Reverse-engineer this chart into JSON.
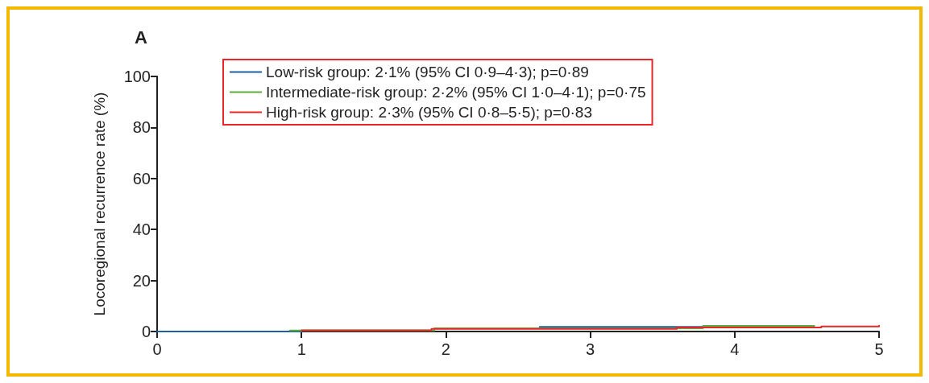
{
  "chart_data": {
    "type": "step",
    "title": "A",
    "ylabel": "Locoregional recurrence rate (%)",
    "xlim": [
      0,
      5
    ],
    "xticks": [
      0,
      1,
      2,
      3,
      4,
      5
    ],
    "ylim": [
      0,
      100
    ],
    "yticks": [
      0,
      20,
      40,
      60,
      80,
      100
    ],
    "grid": false,
    "legend": "top left",
    "marker": "none",
    "line_style": "solid",
    "series": [
      {
        "name": "Low-risk group: 2·1% (95% CI 0·9–4·3); p=0·89",
        "color": "#1f5fa8",
        "x": [
          0,
          1,
          1.9,
          2.65,
          4.55
        ],
        "values": [
          0,
          null,
          null,
          1.8,
          2.1
        ]
      },
      {
        "name": "Intermediate-risk group: 2·2% (95% CI 1·0–4·1); p=0·75",
        "color": "#5aae3c",
        "x": [
          0.92,
          1.92,
          3.78,
          4.55
        ],
        "values": [
          0.4,
          1.3,
          2.2,
          2.2
        ]
      },
      {
        "name": "High-risk group: 2·3% (95% CI 0·8–5·5); p=0·83",
        "color": "#e8262a",
        "x": [
          1.0,
          1.9,
          3.6,
          4.6,
          5.0
        ],
        "values": [
          0.5,
          1.0,
          1.6,
          2.0,
          2.3
        ]
      }
    ]
  }
}
